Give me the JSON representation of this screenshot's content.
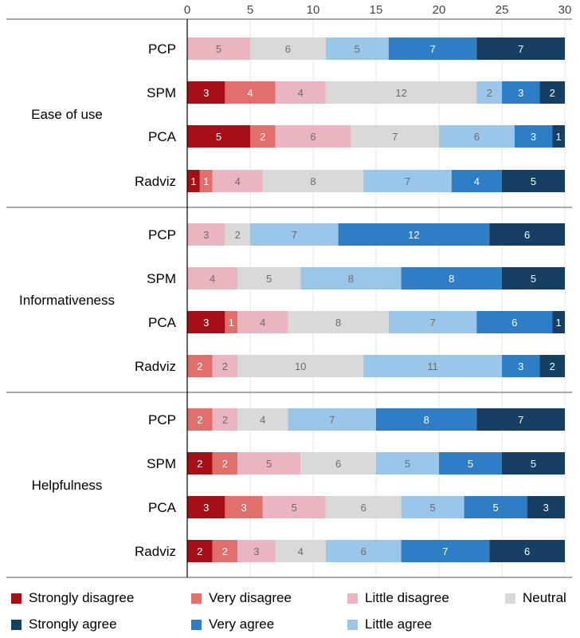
{
  "chart_data": {
    "type": "bar",
    "orientation": "horizontal",
    "stacked": true,
    "xlim": [
      0,
      30
    ],
    "x_ticks": [
      0,
      5,
      10,
      15,
      20,
      25,
      30
    ],
    "x_axis_position": "top",
    "grid": true,
    "legend_position": "bottom",
    "categories": [
      "Strongly disagree",
      "Very disagree",
      "Little disagree",
      "Neutral",
      "Little agree",
      "Very agree",
      "Strongly agree"
    ],
    "colors": [
      "#a50f15",
      "#e16f6c",
      "#ebb5c0",
      "#d9d9d9",
      "#9ac6ea",
      "#2f7dc4",
      "#173f63"
    ],
    "groups": [
      {
        "label": "Ease of use",
        "rows": [
          {
            "label": "PCP",
            "values": [
              0,
              0,
              5,
              6,
              5,
              7,
              7
            ]
          },
          {
            "label": "SPM",
            "values": [
              3,
              4,
              4,
              12,
              2,
              3,
              2
            ]
          },
          {
            "label": "PCA",
            "values": [
              5,
              2,
              6,
              7,
              6,
              3,
              1
            ]
          },
          {
            "label": "Radviz",
            "values": [
              1,
              1,
              4,
              8,
              7,
              4,
              5
            ]
          }
        ]
      },
      {
        "label": "Informativeness",
        "rows": [
          {
            "label": "PCP",
            "values": [
              0,
              0,
              3,
              2,
              7,
              12,
              6
            ]
          },
          {
            "label": "SPM",
            "values": [
              0,
              0,
              4,
              5,
              8,
              8,
              5
            ]
          },
          {
            "label": "PCA",
            "values": [
              3,
              1,
              4,
              8,
              7,
              6,
              1
            ]
          },
          {
            "label": "Radviz",
            "values": [
              0,
              2,
              2,
              10,
              11,
              3,
              2
            ]
          }
        ]
      },
      {
        "label": "Helpfulness",
        "rows": [
          {
            "label": "PCP",
            "values": [
              0,
              2,
              2,
              4,
              7,
              8,
              7
            ]
          },
          {
            "label": "SPM",
            "values": [
              2,
              2,
              5,
              6,
              5,
              5,
              5
            ]
          },
          {
            "label": "PCA",
            "values": [
              3,
              3,
              5,
              6,
              5,
              5,
              3
            ]
          },
          {
            "label": "Radviz",
            "values": [
              2,
              2,
              3,
              4,
              6,
              7,
              6
            ]
          }
        ]
      }
    ]
  },
  "legend": {
    "items": [
      {
        "key": "strongly-disagree",
        "label": "Strongly disagree",
        "color": "#a50f15"
      },
      {
        "key": "very-disagree",
        "label": "Very disagree",
        "color": "#e16f6c"
      },
      {
        "key": "little-disagree",
        "label": "Little disagree",
        "color": "#ebb5c0"
      },
      {
        "key": "neutral",
        "label": "Neutral",
        "color": "#d9d9d9"
      },
      {
        "key": "strongly-agree",
        "label": "Strongly agree",
        "color": "#173f63"
      },
      {
        "key": "very-agree",
        "label": "Very agree",
        "color": "#2f7dc4"
      },
      {
        "key": "little-agree",
        "label": "Little agree",
        "color": "#9ac6ea"
      }
    ]
  }
}
